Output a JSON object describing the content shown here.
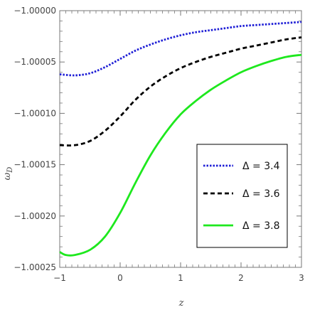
{
  "chart_data": {
    "type": "line",
    "xlabel": "z",
    "ylabel": "ω",
    "ylabel_sub": "D",
    "xlim": [
      -1,
      3
    ],
    "ylim": [
      -1.00025,
      -1.0
    ],
    "x_ticks": [
      "−1",
      "0",
      "1",
      "2",
      "3"
    ],
    "y_ticks": [
      "−1.00000",
      "−1.00005",
      "−1.00010",
      "−1.00015",
      "−1.00020",
      "−1.00025"
    ],
    "grid": false,
    "legend_position": "bottom-right",
    "series": [
      {
        "name": "Δ = 3.4",
        "color": "#1f1fd6",
        "style": "dotted",
        "x": [
          -1,
          -0.75,
          -0.5,
          -0.25,
          0,
          0.25,
          0.5,
          0.75,
          1,
          1.25,
          1.5,
          1.75,
          2,
          2.25,
          2.5,
          2.75,
          3
        ],
        "y": [
          -1.000062,
          -1.000063,
          -1.000061,
          -1.000055,
          -1.000047,
          -1.000039,
          -1.000033,
          -1.000028,
          -1.000024,
          -1.000021,
          -1.000019,
          -1.000017,
          -1.000015,
          -1.000014,
          -1.000013,
          -1.000012,
          -1.000011
        ]
      },
      {
        "name": "Δ = 3.6",
        "color": "#000000",
        "style": "dashed",
        "x": [
          -1,
          -0.75,
          -0.5,
          -0.25,
          0,
          0.25,
          0.5,
          0.75,
          1,
          1.25,
          1.5,
          1.75,
          2,
          2.25,
          2.5,
          2.75,
          3
        ],
        "y": [
          -1.000131,
          -1.000131,
          -1.000127,
          -1.000117,
          -1.000103,
          -1.000087,
          -1.000074,
          -1.000064,
          -1.000056,
          -1.00005,
          -1.000045,
          -1.000041,
          -1.000037,
          -1.000034,
          -1.000031,
          -1.000028,
          -1.000026
        ]
      },
      {
        "name": "Δ = 3.8",
        "color": "#1ee81e",
        "style": "solid",
        "x": [
          -1,
          -0.9,
          -0.75,
          -0.5,
          -0.25,
          0,
          0.25,
          0.5,
          0.75,
          1,
          1.25,
          1.5,
          1.75,
          2,
          2.25,
          2.5,
          2.75,
          3
        ],
        "y": [
          -1.000235,
          -1.000238,
          -1.000238,
          -1.000233,
          -1.00022,
          -1.000197,
          -1.000168,
          -1.000141,
          -1.000119,
          -1.000101,
          -1.000088,
          -1.000077,
          -1.000068,
          -1.00006,
          -1.000054,
          -1.000049,
          -1.000045,
          -1.000043
        ]
      }
    ]
  }
}
